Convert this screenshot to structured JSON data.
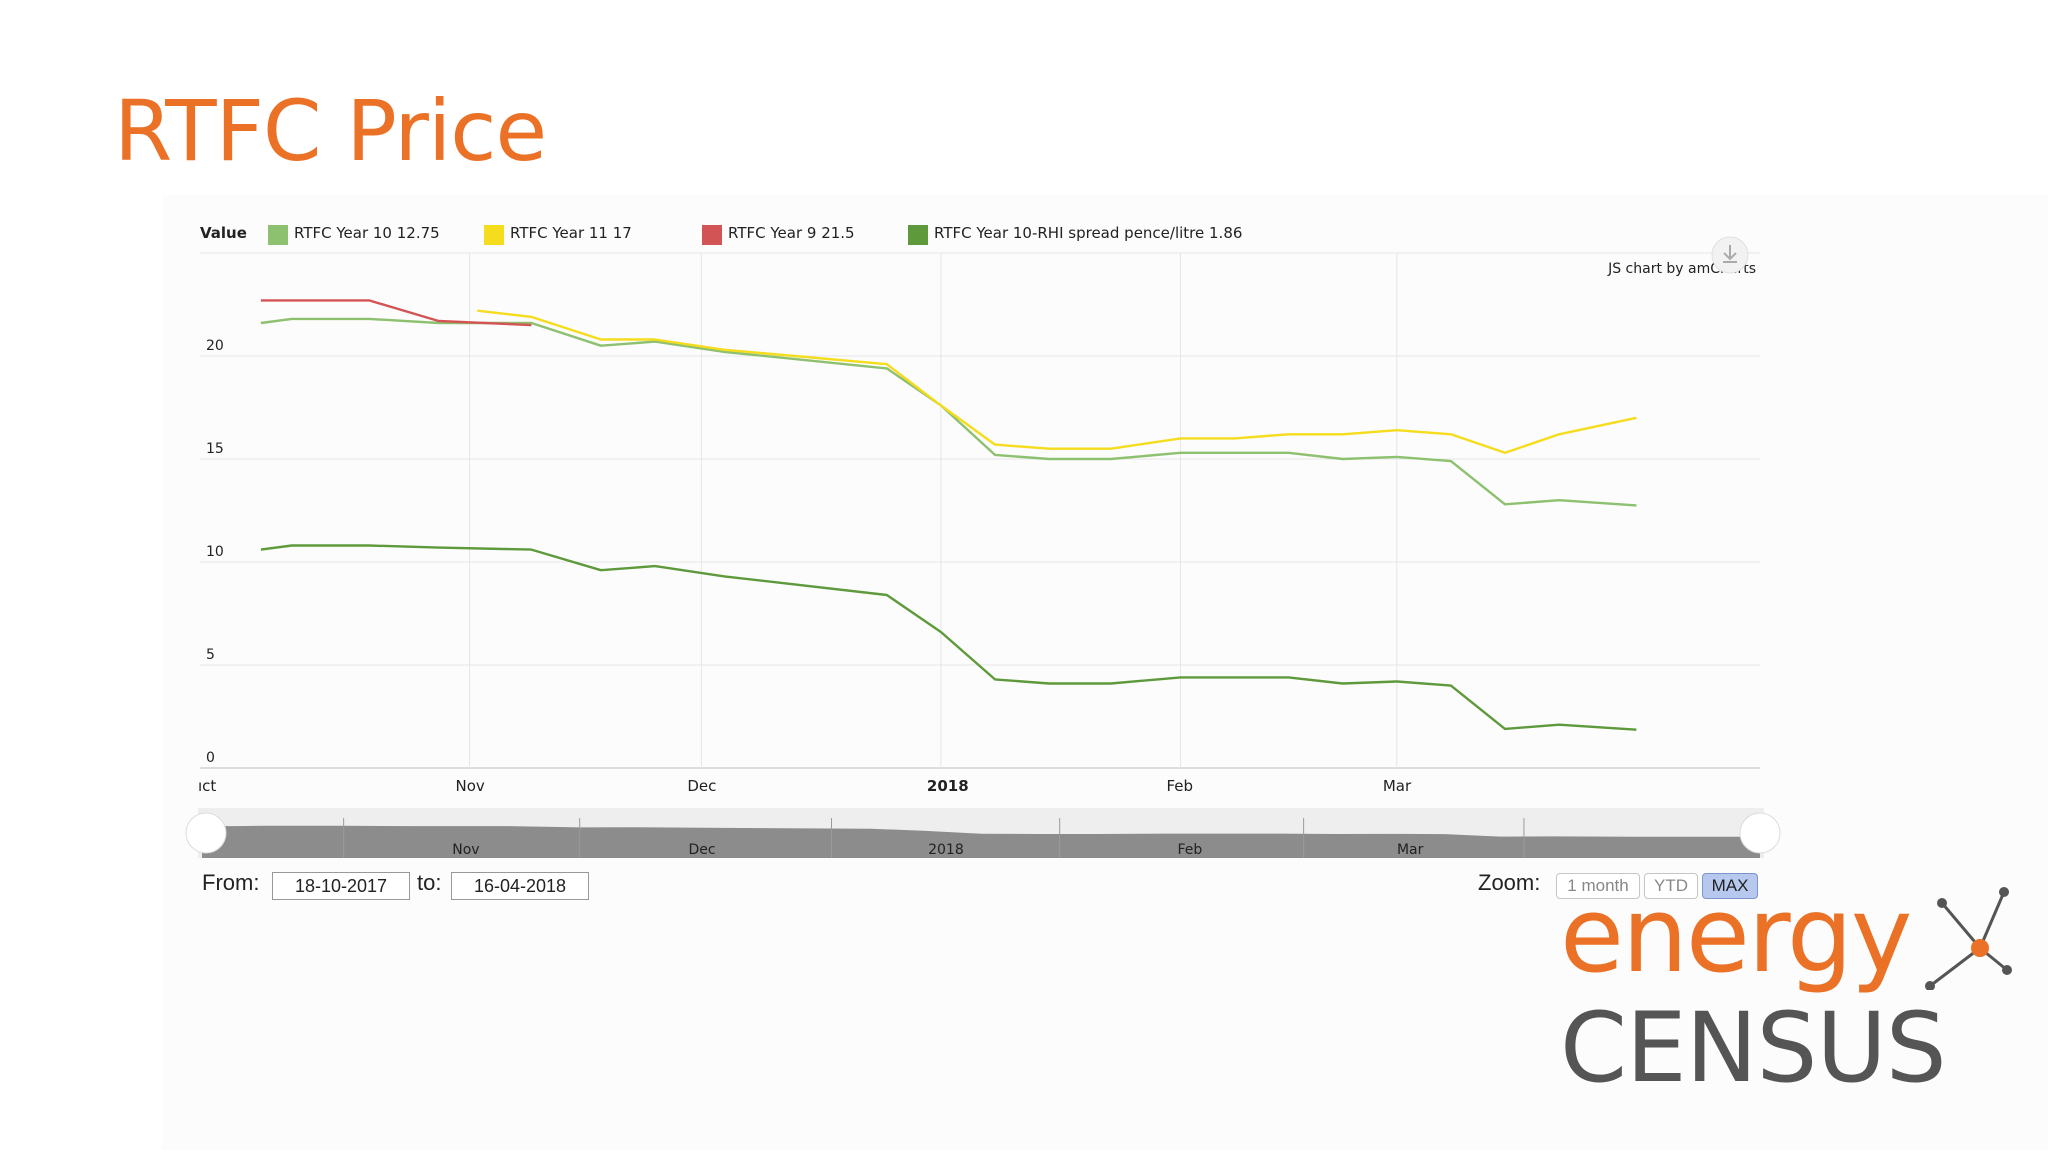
{
  "slide": {
    "title": "RTFC Price"
  },
  "colors": {
    "title": "#ea7125",
    "series_year10": "#8dc06f",
    "series_year11": "#f5dc1c",
    "series_year9": "#d35454",
    "series_spread": "#5e9a3c",
    "navigator_fill": "#8c8c8c",
    "zoom_active": "#b7c8ee",
    "logo_orange": "#ea7125",
    "logo_gray": "#555555"
  },
  "chart_data": {
    "type": "line",
    "legend_label": "Value",
    "legend_position": "top",
    "credit": "JS chart by amCharts",
    "x_is_date": true,
    "xlim": [
      "2017-10-01",
      "2018-04-17"
    ],
    "ylim": [
      0,
      25
    ],
    "y_ticks": [
      0,
      5,
      10,
      15,
      20
    ],
    "x_ticks": [
      {
        "date": "2017-10-01",
        "label": "ıct",
        "bold": false
      },
      {
        "date": "2017-11-01",
        "label": "Nov",
        "bold": false
      },
      {
        "date": "2017-12-01",
        "label": "Dec",
        "bold": false
      },
      {
        "date": "2018-01-01",
        "label": "2018",
        "bold": true
      },
      {
        "date": "2018-02-01",
        "label": "Feb",
        "bold": false
      },
      {
        "date": "2018-03-01",
        "label": "Mar",
        "bold": false
      }
    ],
    "grid": true,
    "series": [
      {
        "name": "RTFC Year 10",
        "legend_value": "12.75",
        "color_key": "series_year10",
        "points": [
          [
            "2017-10-05",
            21.6
          ],
          [
            "2017-10-09",
            21.8
          ],
          [
            "2017-10-19",
            21.8
          ],
          [
            "2017-10-28",
            21.6
          ],
          [
            "2017-11-09",
            21.6
          ],
          [
            "2017-11-18",
            20.5
          ],
          [
            "2017-11-25",
            20.7
          ],
          [
            "2017-12-04",
            20.2
          ],
          [
            "2017-12-25",
            19.4
          ],
          [
            "2018-01-01",
            17.6
          ],
          [
            "2018-01-08",
            15.2
          ],
          [
            "2018-01-15",
            15.0
          ],
          [
            "2018-01-23",
            15.0
          ],
          [
            "2018-02-01",
            15.3
          ],
          [
            "2018-02-15",
            15.3
          ],
          [
            "2018-02-22",
            15.0
          ],
          [
            "2018-03-01",
            15.1
          ],
          [
            "2018-03-08",
            14.9
          ],
          [
            "2018-03-15",
            12.8
          ],
          [
            "2018-03-22",
            13.0
          ],
          [
            "2018-04-01",
            12.75
          ]
        ]
      },
      {
        "name": "RTFC Year 11",
        "legend_value": "17",
        "color_key": "series_year11",
        "points": [
          [
            "2017-11-02",
            22.2
          ],
          [
            "2017-11-09",
            21.9
          ],
          [
            "2017-11-18",
            20.8
          ],
          [
            "2017-11-25",
            20.8
          ],
          [
            "2017-12-04",
            20.3
          ],
          [
            "2017-12-25",
            19.6
          ],
          [
            "2018-01-01",
            17.6
          ],
          [
            "2018-01-08",
            15.7
          ],
          [
            "2018-01-15",
            15.5
          ],
          [
            "2018-01-23",
            15.5
          ],
          [
            "2018-02-01",
            16.0
          ],
          [
            "2018-02-08",
            16.0
          ],
          [
            "2018-02-15",
            16.2
          ],
          [
            "2018-02-22",
            16.2
          ],
          [
            "2018-03-01",
            16.4
          ],
          [
            "2018-03-08",
            16.2
          ],
          [
            "2018-03-15",
            15.3
          ],
          [
            "2018-03-22",
            16.2
          ],
          [
            "2018-04-01",
            17.0
          ]
        ]
      },
      {
        "name": "RTFC Year 9",
        "legend_value": "21.5",
        "color_key": "series_year9",
        "points": [
          [
            "2017-10-05",
            22.7
          ],
          [
            "2017-10-19",
            22.7
          ],
          [
            "2017-10-28",
            21.7
          ],
          [
            "2017-11-09",
            21.5
          ]
        ]
      },
      {
        "name": "RTFC Year 10-RHI spread pence/litre",
        "legend_value": "1.86",
        "color_key": "series_spread",
        "points": [
          [
            "2017-10-05",
            10.6
          ],
          [
            "2017-10-09",
            10.8
          ],
          [
            "2017-10-19",
            10.8
          ],
          [
            "2017-10-28",
            10.7
          ],
          [
            "2017-11-09",
            10.6
          ],
          [
            "2017-11-18",
            9.6
          ],
          [
            "2017-11-25",
            9.8
          ],
          [
            "2017-12-04",
            9.3
          ],
          [
            "2017-12-25",
            8.4
          ],
          [
            "2018-01-01",
            6.6
          ],
          [
            "2018-01-08",
            4.3
          ],
          [
            "2018-01-15",
            4.1
          ],
          [
            "2018-01-23",
            4.1
          ],
          [
            "2018-02-01",
            4.4
          ],
          [
            "2018-02-15",
            4.4
          ],
          [
            "2018-02-22",
            4.1
          ],
          [
            "2018-03-01",
            4.2
          ],
          [
            "2018-03-08",
            4.0
          ],
          [
            "2018-03-15",
            1.9
          ],
          [
            "2018-03-22",
            2.1
          ],
          [
            "2018-04-01",
            1.86
          ]
        ]
      }
    ]
  },
  "navigator": {
    "labels": [
      "Nov",
      "Dec",
      "2018",
      "Feb",
      "Mar"
    ]
  },
  "controls": {
    "from_label": "From:",
    "from_value": "18-10-2017",
    "to_label": "to:",
    "to_value": "16-04-2018",
    "zoom_label": "Zoom:",
    "zoom_buttons": [
      {
        "label": "1 month",
        "active": false
      },
      {
        "label": "YTD",
        "active": false
      },
      {
        "label": "MAX",
        "active": true
      }
    ]
  },
  "logo": {
    "line1": "energy",
    "line2": "CENSUS"
  }
}
